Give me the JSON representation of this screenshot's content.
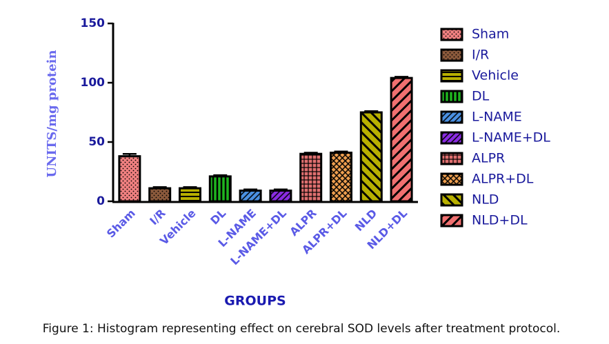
{
  "chart_data": {
    "type": "bar",
    "y_label": "UNITS/mg protein",
    "x_label": "GROUPS",
    "caption": "Figure 1: Histogram representing effect on cerebral SOD levels after treatment protocol.",
    "categories": [
      "Sham",
      "I/R",
      "Vehicle",
      "DL",
      "L-NAME",
      "L-NAME+DL",
      "ALPR",
      "ALPR+DL",
      "NLD",
      "NLD+DL"
    ],
    "values": [
      38,
      11,
      11,
      21,
      9,
      9,
      40,
      41,
      75,
      104
    ],
    "errors": [
      2,
      1,
      1,
      1,
      1,
      1,
      1,
      1,
      1,
      1
    ],
    "colors": [
      "#f08080",
      "#8b5a3c",
      "#b8b000",
      "#1fb51f",
      "#4a90e2",
      "#8a2be2",
      "#e07070",
      "#f0a050",
      "#b8b000",
      "#f07070"
    ],
    "patterns": [
      "dots",
      "dots",
      "hlines",
      "vlines",
      "diag",
      "diag",
      "grid",
      "crosshatch",
      "diag-back",
      "diag"
    ],
    "ylim": [
      0,
      150
    ],
    "yticks": [
      0,
      50,
      100,
      150
    ],
    "legend": "right"
  }
}
